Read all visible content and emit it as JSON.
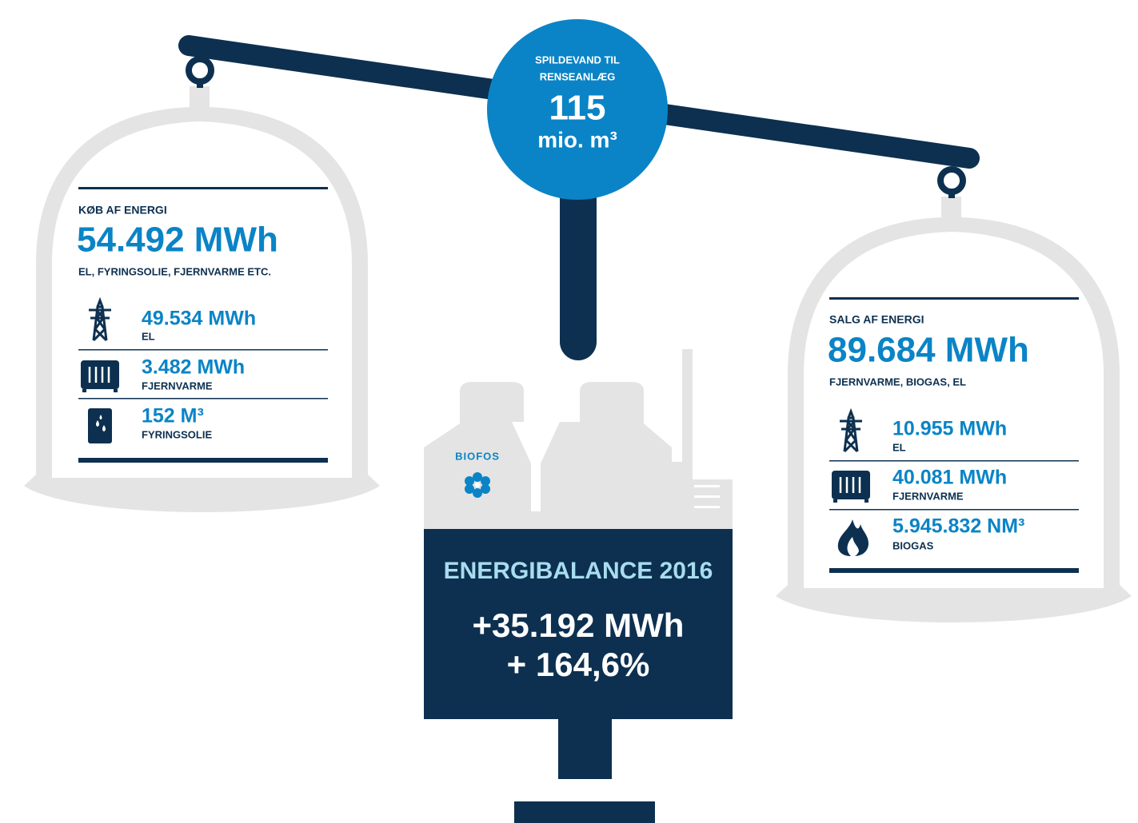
{
  "center": {
    "label_lines": [
      "SPILDEVAND TIL",
      "RENSEANLÆG"
    ],
    "value": "115",
    "unit": "mio. m³"
  },
  "purchase": {
    "title": "KØB AF ENERGI",
    "total": "54.492 MWh",
    "subtitle": "EL, FYRINGSOLIE, FJERNVARME ETC.",
    "items": [
      {
        "value": "49.534 MWh",
        "label": "EL"
      },
      {
        "value": "3.482 MWh",
        "label": "FJERNVARME"
      },
      {
        "value": "152 M³",
        "label": "FYRINGSOLIE"
      }
    ]
  },
  "sale": {
    "title": "SALG AF ENERGI",
    "total": "89.684 MWh",
    "subtitle": "FJERNVARME, BIOGAS, EL",
    "items": [
      {
        "value": "10.955 MWh",
        "label": "EL"
      },
      {
        "value": "40.081 MWh",
        "label": "FJERNVARME"
      },
      {
        "value": "5.945.832 NM³",
        "label": "BIOGAS"
      }
    ]
  },
  "plant": {
    "logo": "BIOFOS"
  },
  "balance": {
    "title": "ENERGIBALANCE 2016",
    "lines": [
      "+35.192 MWh",
      "+ 164,6%"
    ]
  }
}
